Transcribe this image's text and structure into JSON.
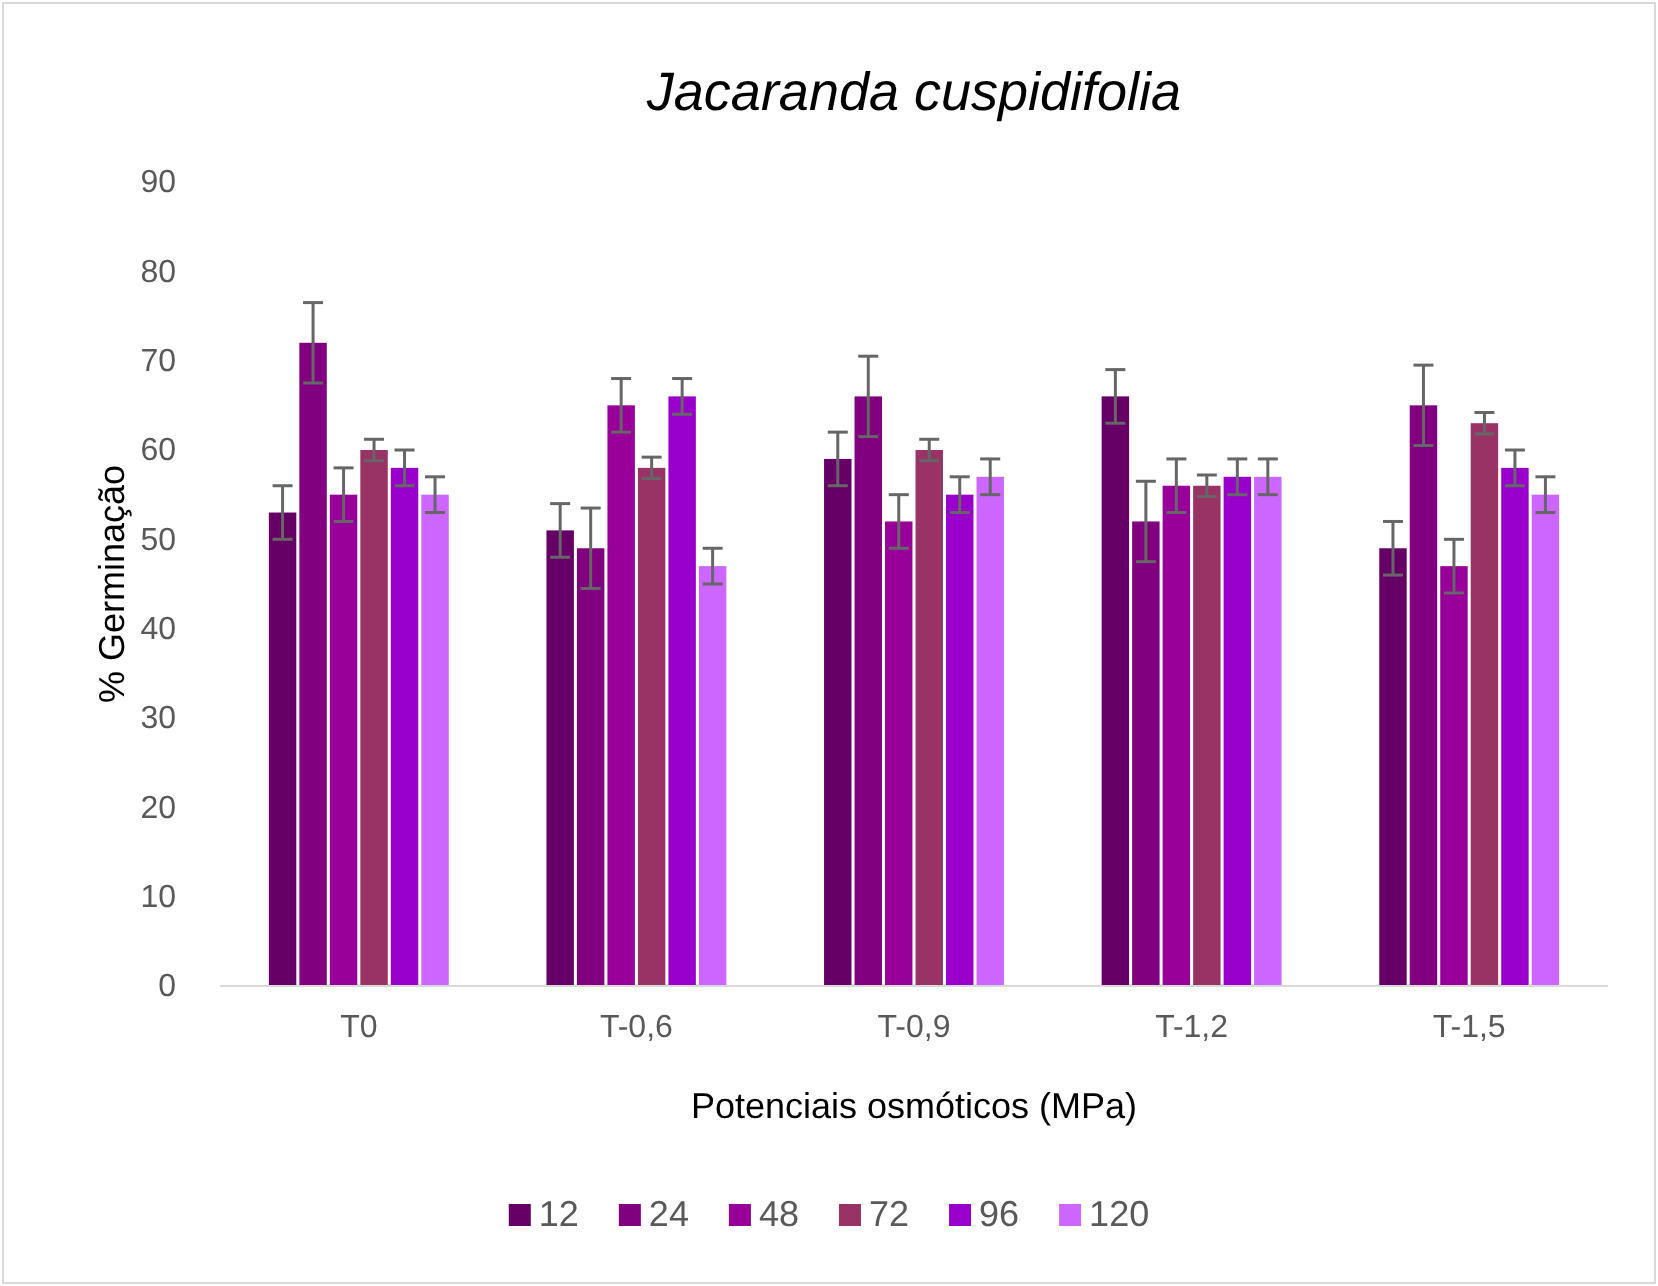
{
  "chart_data": {
    "type": "bar",
    "title": "Jacaranda cuspidifolia",
    "xlabel": "Potenciais osmóticos (MPa)",
    "ylabel": "% Germinação",
    "categories": [
      "T0",
      "T-0,6",
      "T-0,9",
      "T-1,2",
      "T-1,5"
    ],
    "series": [
      {
        "name": "12",
        "color": "#660066",
        "values": [
          53,
          51,
          59,
          66,
          49
        ],
        "errors": [
          3,
          3,
          3,
          3,
          3
        ]
      },
      {
        "name": "24",
        "color": "#800080",
        "values": [
          72,
          49,
          66,
          52,
          65
        ],
        "errors": [
          4.5,
          4.5,
          4.5,
          4.5,
          4.5
        ]
      },
      {
        "name": "48",
        "color": "#990099",
        "values": [
          55,
          65,
          52,
          56,
          47
        ],
        "errors": [
          3,
          3,
          3,
          3,
          3
        ]
      },
      {
        "name": "72",
        "color": "#993366",
        "values": [
          60,
          58,
          60,
          56,
          63
        ],
        "errors": [
          1.2,
          1.2,
          1.2,
          1.2,
          1.2
        ]
      },
      {
        "name": "96",
        "color": "#9900cc",
        "values": [
          58,
          66,
          55,
          57,
          58
        ],
        "errors": [
          2,
          2,
          2,
          2,
          2
        ]
      },
      {
        "name": "120",
        "color": "#cc66ff",
        "values": [
          55,
          47,
          57,
          57,
          55
        ],
        "errors": [
          2,
          2,
          2,
          2,
          2
        ]
      }
    ],
    "ylim": [
      0,
      90
    ],
    "yticks": [
      0,
      10,
      20,
      30,
      40,
      50,
      60,
      70,
      80,
      90
    ],
    "grid": false,
    "legend": "bottom"
  }
}
